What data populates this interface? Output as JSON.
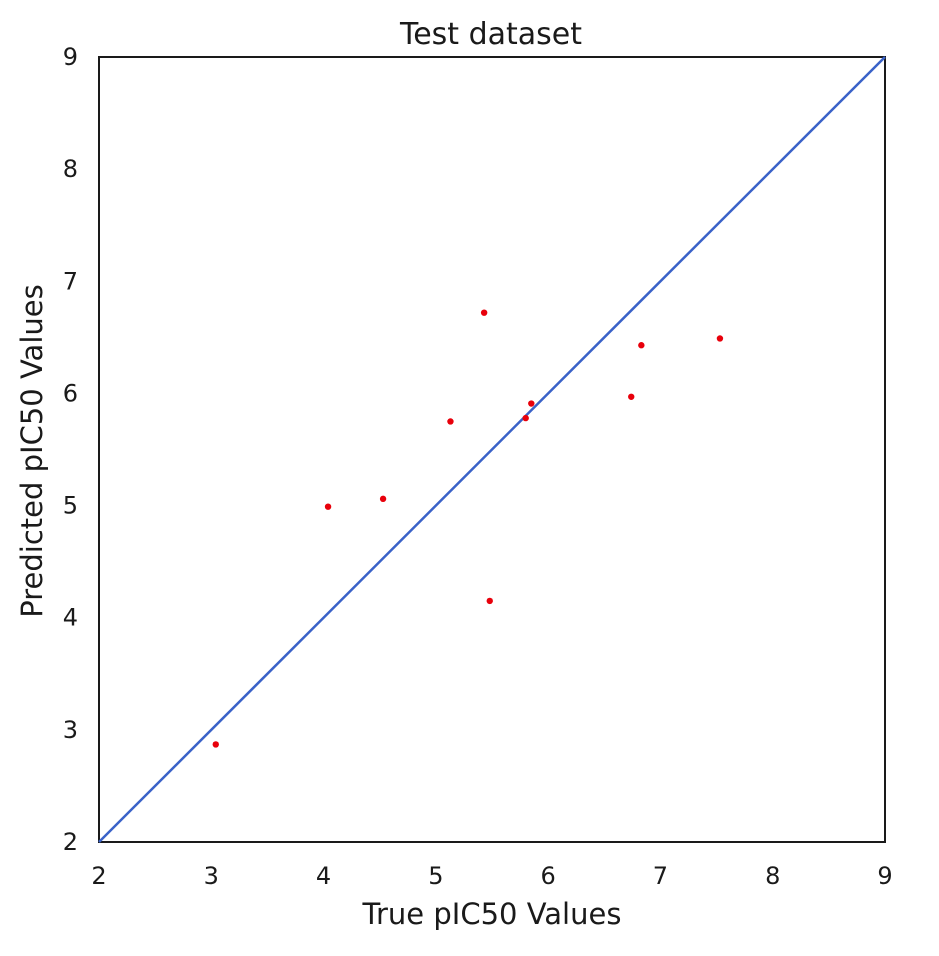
{
  "chart_data": {
    "type": "scatter",
    "title": "Test dataset",
    "xlabel": "True pIC50 Values",
    "ylabel": "Predicted pIC50 Values",
    "xlim": [
      2,
      9
    ],
    "ylim": [
      2,
      9
    ],
    "xticks": [
      "2",
      "3",
      "4",
      "5",
      "6",
      "7",
      "8",
      "9"
    ],
    "yticks": [
      "2",
      "3",
      "4",
      "5",
      "6",
      "7",
      "8",
      "9"
    ],
    "grid": false,
    "legend": "none",
    "series": [
      {
        "kind": "points",
        "color": "#e8000b",
        "x": [
          3.04,
          4.04,
          4.53,
          5.13,
          5.43,
          5.48,
          5.8,
          5.85,
          6.74,
          6.83,
          7.53
        ],
        "y": [
          2.87,
          4.99,
          5.06,
          5.75,
          6.72,
          4.15,
          5.78,
          5.91,
          5.97,
          6.43,
          6.49
        ]
      },
      {
        "kind": "identity-line",
        "color": "#3a62c8",
        "x": [
          2,
          9
        ],
        "y": [
          2,
          9
        ]
      }
    ]
  }
}
